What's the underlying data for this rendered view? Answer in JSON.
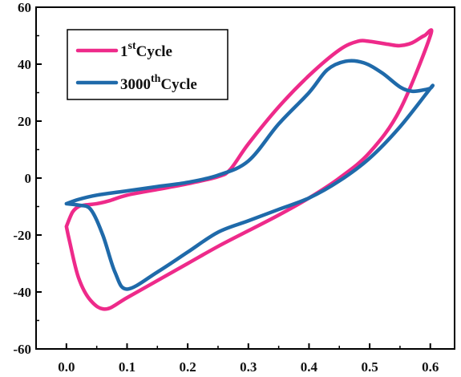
{
  "chart_data": {
    "type": "line",
    "title": "",
    "xlabel": "",
    "ylabel": "",
    "xlim": [
      -0.05,
      0.64
    ],
    "ylim": [
      -60,
      60
    ],
    "x_ticks": [
      "0.0",
      "0.1",
      "0.2",
      "0.3",
      "0.4",
      "0.5",
      "0.6"
    ],
    "y_ticks": [
      "-60",
      "-40",
      "-20",
      "0",
      "20",
      "40",
      "60"
    ],
    "grid": false,
    "legend_position": "top-left",
    "series": [
      {
        "name_base": "1",
        "name_sup": "st",
        "name_tail": "Cycle",
        "color": "#ee2a8a",
        "x": [
          0.0,
          0.005,
          0.02,
          0.04,
          0.065,
          0.1,
          0.15,
          0.2,
          0.25,
          0.3,
          0.35,
          0.4,
          0.45,
          0.5,
          0.55,
          0.6,
          0.59,
          0.57,
          0.55,
          0.53,
          0.5,
          0.48,
          0.45,
          0.4,
          0.35,
          0.3,
          0.27,
          0.25,
          0.2,
          0.15,
          0.1,
          0.07,
          0.05,
          0.03,
          0.02,
          0.01,
          0.0
        ],
        "y": [
          -17,
          -22,
          -35,
          -43,
          -46,
          -42,
          -36,
          -30,
          -24,
          -18.5,
          -13,
          -7,
          0,
          9,
          24,
          50,
          50,
          47.5,
          46.5,
          47,
          48,
          48,
          45,
          36,
          25,
          12,
          3,
          0.5,
          -2,
          -4,
          -6,
          -8,
          -9,
          -9.5,
          -10,
          -12,
          -17
        ]
      },
      {
        "name_base": "3000",
        "name_sup": "th",
        "name_tail": "Cycle",
        "color": "#1f6aaa",
        "x": [
          0.0,
          0.02,
          0.04,
          0.06,
          0.08,
          0.1,
          0.15,
          0.2,
          0.25,
          0.3,
          0.35,
          0.4,
          0.45,
          0.5,
          0.55,
          0.6,
          0.6,
          0.59,
          0.57,
          0.55,
          0.52,
          0.49,
          0.46,
          0.43,
          0.4,
          0.35,
          0.3,
          0.25,
          0.2,
          0.15,
          0.1,
          0.05,
          0.02,
          0.0
        ],
        "y": [
          -9,
          -9.5,
          -11,
          -20,
          -33,
          -39,
          -33,
          -26,
          -19,
          -15,
          -11,
          -7,
          -1,
          7,
          18,
          31.5,
          31.5,
          31,
          30.5,
          32,
          37,
          40.5,
          41,
          38,
          30,
          19,
          6,
          1,
          -1.5,
          -3,
          -4.5,
          -6,
          -7.5,
          -9
        ]
      }
    ]
  }
}
